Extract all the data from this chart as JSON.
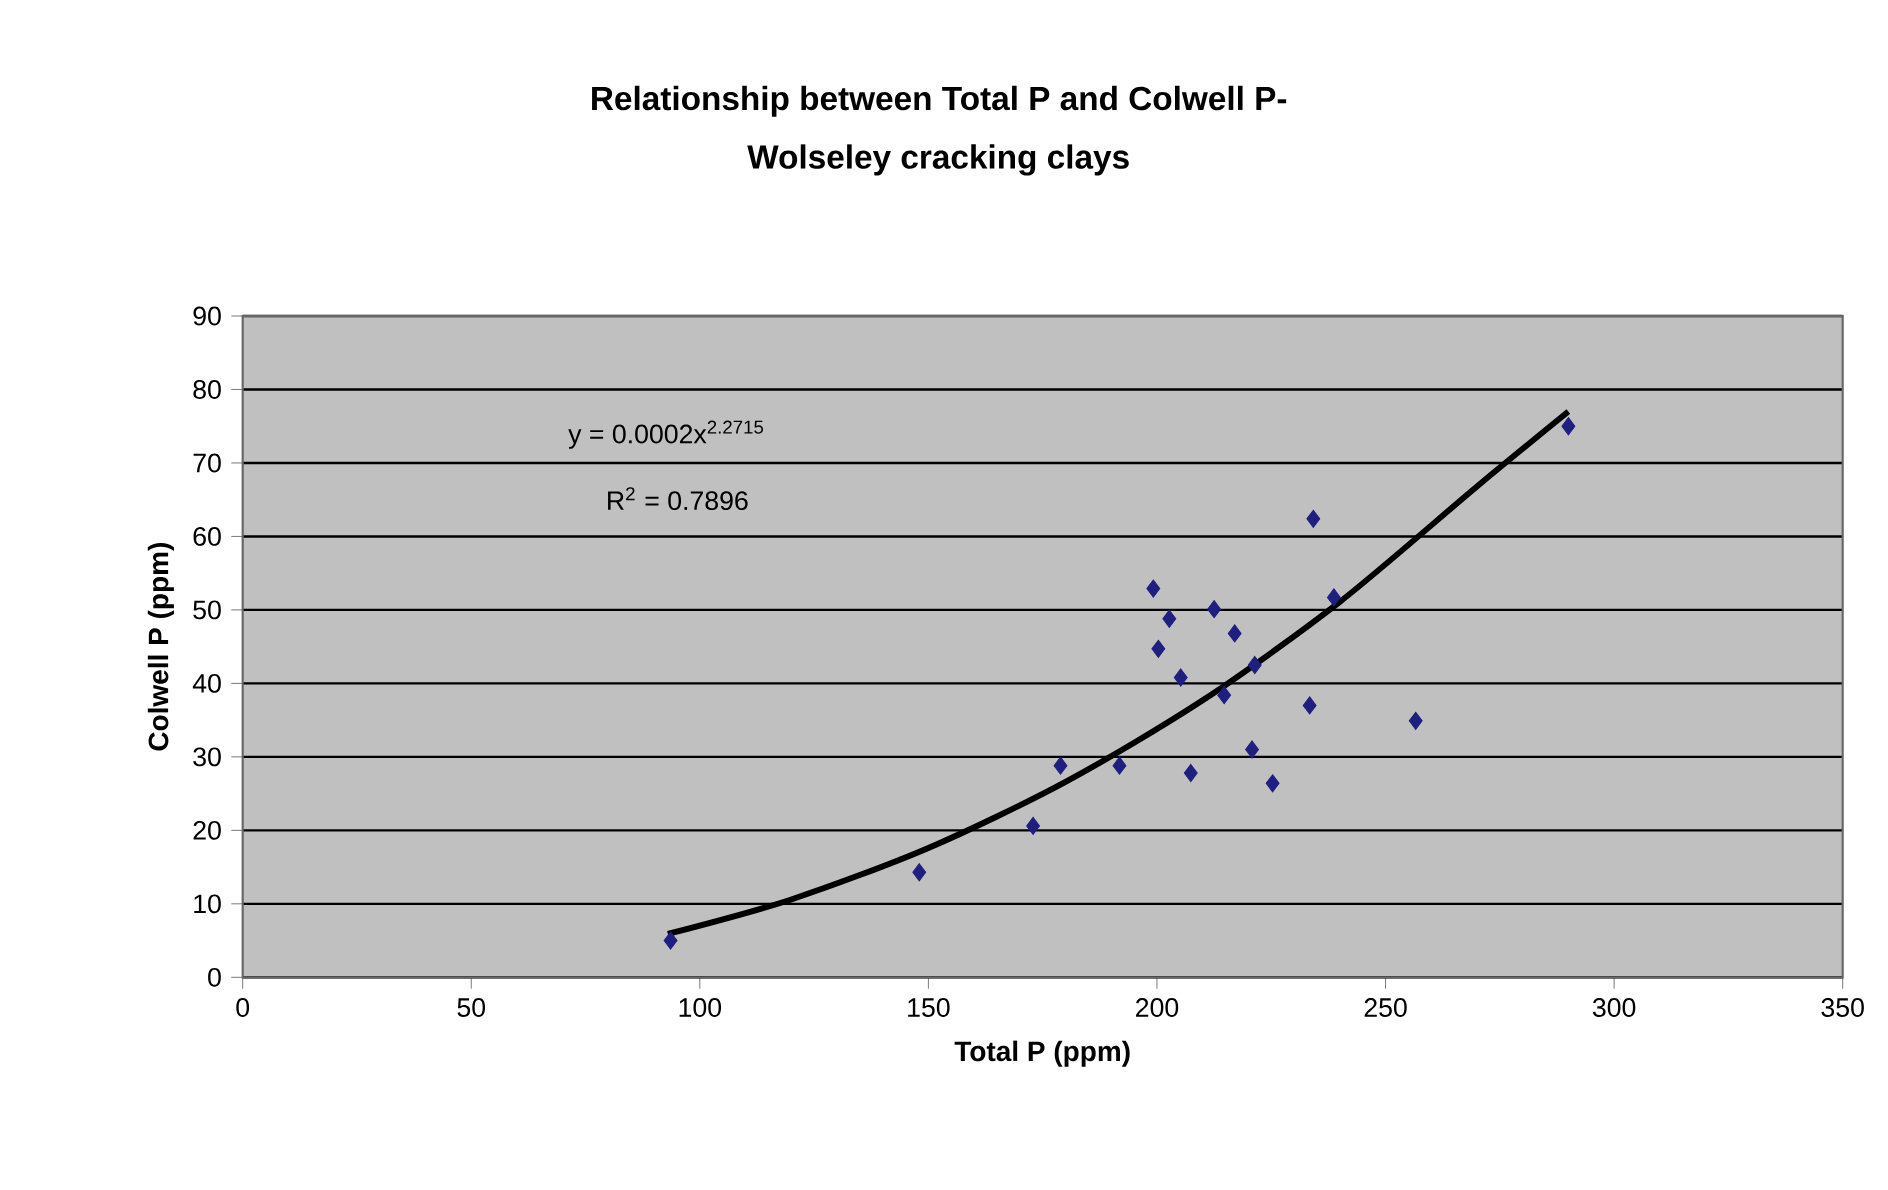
{
  "chart_data": {
    "type": "scatter",
    "title": "Relationship between Total P and Colwell P-",
    "subtitle": "Wolseley cracking clays",
    "xlabel": "Total P (ppm)",
    "ylabel": "Colwell P (ppm)",
    "annotations": [
      "y = 0.0002x$^{2.2715}$",
      "R$^{2}$ = 0.7896"
    ],
    "xlim": [
      0,
      350
    ],
    "xticks": [
      0,
      50,
      100,
      150,
      200,
      250,
      300,
      350
    ],
    "ylim": [
      0,
      90
    ],
    "yticks": [
      0,
      10,
      20,
      30,
      40,
      50,
      60,
      70,
      80,
      90
    ],
    "grid": "y",
    "marker": "diamond",
    "series": [
      {
        "color": "#1f1f80",
        "x": [
          93.6,
          148,
          172.9,
          178.9,
          191.8,
          199.2,
          202.7,
          200.3,
          205.2,
          207.4,
          212.5,
          217,
          214.7,
          221.4,
          220.8,
          225.3,
          233.4,
          234.2,
          238.7,
          256.6,
          290
        ],
        "values": [
          5,
          14.3,
          20.6,
          28.8,
          28.8,
          52.9,
          48.8,
          44.7,
          40.8,
          27.8,
          50.1,
          46.8,
          38.4,
          42.5,
          31,
          26.4,
          37,
          62.4,
          51.7,
          34.9,
          75
        ]
      },
      {
        "type": "line",
        "color": "#000000",
        "marker": "none",
        "x": [
          93,
          120,
          150,
          180,
          210,
          240,
          270,
          290
        ],
        "values": [
          5.9,
          10.6,
          17.6,
          26.6,
          37.7,
          51.1,
          66.8,
          77
        ]
      }
    ]
  }
}
